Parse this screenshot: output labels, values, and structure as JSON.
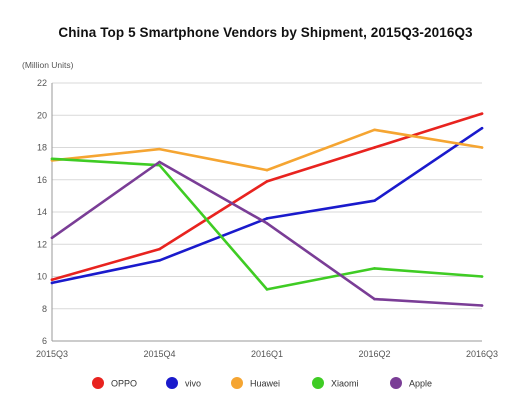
{
  "chart_data": {
    "type": "line",
    "title": "China Top 5 Smartphone Vendors by Shipment, 2015Q3-2016Q3",
    "ylabel": "(Million Units)",
    "xlabel": "",
    "categories": [
      "2015Q3",
      "2015Q4",
      "2016Q1",
      "2016Q2",
      "2016Q3"
    ],
    "ylim": [
      6,
      22
    ],
    "yticks": [
      6,
      8,
      10,
      12,
      14,
      16,
      18,
      20,
      22
    ],
    "grid": "horizontal",
    "legend_position": "bottom",
    "series": [
      {
        "name": "OPPO",
        "color": "#e8231f",
        "values": [
          9.8,
          11.7,
          15.9,
          18.0,
          20.1
        ]
      },
      {
        "name": "vivo",
        "color": "#1a1acc",
        "values": [
          9.6,
          11.0,
          13.6,
          14.7,
          19.2
        ]
      },
      {
        "name": "Huawei",
        "color": "#f5a532",
        "values": [
          17.2,
          17.9,
          16.6,
          19.1,
          18.0
        ]
      },
      {
        "name": "Xiaomi",
        "color": "#3fcc24",
        "values": [
          17.3,
          16.9,
          9.2,
          10.5,
          10.0
        ]
      },
      {
        "name": "Apple",
        "color": "#7a3d96",
        "values": [
          12.4,
          17.1,
          13.3,
          8.6,
          8.2
        ]
      }
    ]
  }
}
